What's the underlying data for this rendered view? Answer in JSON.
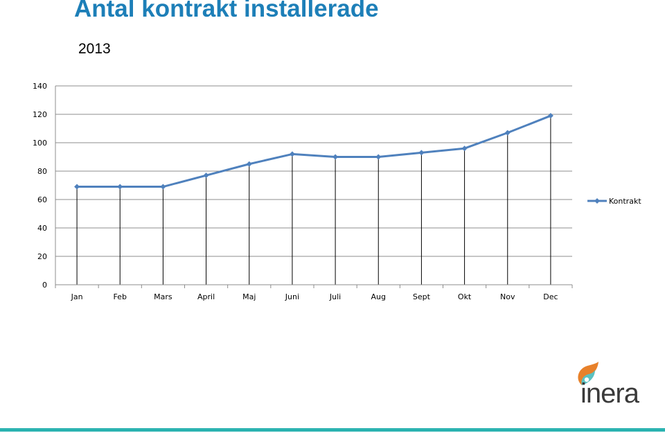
{
  "slide": {
    "title": "Antal kontrakt installerade",
    "subtitle": "2013"
  },
  "logo": {
    "text": "inera",
    "icon": "inera-flame-icon",
    "colors": {
      "orange": "#e8812a",
      "teal": "#5bc1c0",
      "blue": "#2f7fb8"
    }
  },
  "colors": {
    "title": "#1d7fb8",
    "series": "#4f81bd",
    "gridline": "#8c8c8c",
    "bottom_rule": "#2bb3b1"
  },
  "chart_data": {
    "type": "line",
    "title": "",
    "xlabel": "",
    "ylabel": "",
    "categories": [
      "Jan",
      "Feb",
      "Mars",
      "April",
      "Maj",
      "Juni",
      "Juli",
      "Aug",
      "Sept",
      "Okt",
      "Nov",
      "Dec"
    ],
    "series": [
      {
        "name": "Kontrakt",
        "values": [
          69,
          69,
          69,
          77,
          85,
          92,
          90,
          90,
          93,
          96,
          107,
          119
        ]
      }
    ],
    "ylim": [
      0,
      140
    ],
    "yticks": [
      0,
      20,
      40,
      60,
      80,
      100,
      120,
      140
    ],
    "grid": true,
    "drop_lines": true,
    "legend": "right"
  }
}
